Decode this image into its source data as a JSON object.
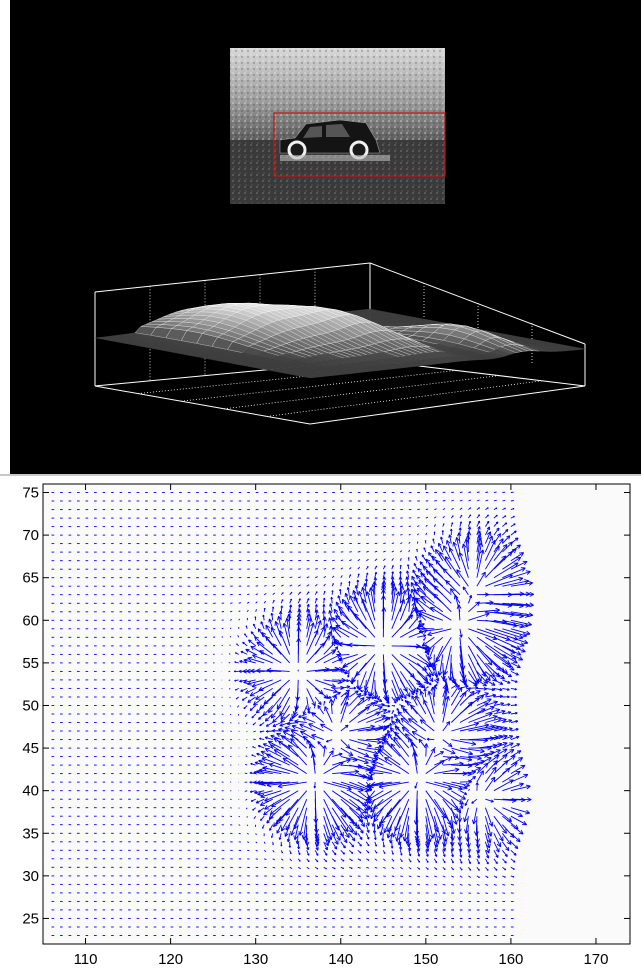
{
  "colors": {
    "background_top": "#000000",
    "selection_box": "#cc1111",
    "vector_color": "#0000ff",
    "axis_color": "#000000"
  },
  "thermal_image": {
    "description_icon": "thermal-car-image-icon"
  },
  "surface_plot": {
    "type": "3d-surface",
    "grid": true
  },
  "chart_data": {
    "type": "quiver",
    "title": "",
    "xlabel": "",
    "ylabel": "",
    "xlim": [
      105,
      174
    ],
    "ylim": [
      22,
      76
    ],
    "x_ticks": [
      110,
      120,
      130,
      140,
      150,
      160,
      170
    ],
    "y_ticks": [
      25,
      30,
      35,
      40,
      45,
      50,
      55,
      60,
      65,
      70,
      75
    ],
    "grid_x_range": [
      106,
      160
    ],
    "grid_y_range": [
      23,
      75
    ],
    "grid": false,
    "blobs": [
      {
        "cx": 135,
        "cy": 54,
        "strength": 1.6
      },
      {
        "cx": 145,
        "cy": 57,
        "strength": 2.0
      },
      {
        "cx": 154,
        "cy": 59,
        "strength": 1.8
      },
      {
        "cx": 156,
        "cy": 64,
        "strength": 1.2
      },
      {
        "cx": 140,
        "cy": 47,
        "strength": 1.3
      },
      {
        "cx": 152,
        "cy": 47,
        "strength": 1.4
      },
      {
        "cx": 137,
        "cy": 41,
        "strength": 1.9
      },
      {
        "cx": 149,
        "cy": 41,
        "strength": 2.0
      },
      {
        "cx": 157,
        "cy": 39,
        "strength": 1.1
      }
    ]
  }
}
